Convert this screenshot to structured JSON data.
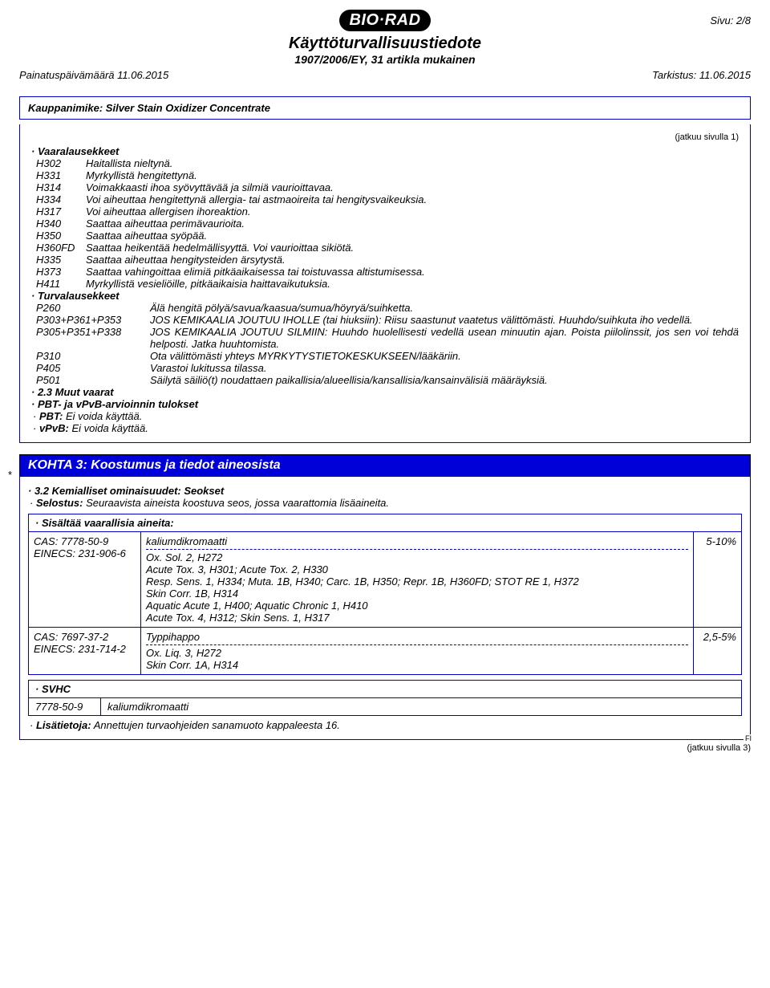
{
  "colors": {
    "brand_bar_bg": "#0000d8",
    "brand_bar_text": "#ffffff",
    "frame_border": "#0000c0",
    "logo_bg": "#000000",
    "logo_text": "#ffffff",
    "page_bg": "#ffffff",
    "text": "#000000"
  },
  "typography": {
    "base_font": "Arial",
    "base_size_pt": 10,
    "title_size_pt": 15,
    "section_size_pt": 12
  },
  "header": {
    "logo_text": "BIO·RAD",
    "page_label": "Sivu: 2/8",
    "title": "Käyttöturvallisuustiedote",
    "subtitle": "1907/2006/EY, 31 artikla mukainen",
    "print_date_label": "Painatuspäivämäärä 11.06.2015",
    "revision_label": "Tarkistus: 11.06.2015",
    "tradename": "Kauppanimike: Silver Stain Oxidizer Concentrate"
  },
  "cont_from": "(jatkuu sivulla 1)",
  "cont_to": "(jatkuu sivulla 3)",
  "fi_mark": "FI",
  "hazard": {
    "heading": "Vaaralausekkeet",
    "rows": [
      {
        "code": "H302",
        "text": "Haitallista nieltynä."
      },
      {
        "code": "H331",
        "text": "Myrkyllistä hengitettynä."
      },
      {
        "code": "H314",
        "text": "Voimakkaasti ihoa syövyttävää ja silmiä vaurioittavaa."
      },
      {
        "code": "H334",
        "text": "Voi aiheuttaa hengitettynä allergia- tai astmaoireita tai hengitysvaikeuksia."
      },
      {
        "code": "H317",
        "text": "Voi aiheuttaa allergisen ihoreaktion."
      },
      {
        "code": "H340",
        "text": "Saattaa aiheuttaa perimävaurioita."
      },
      {
        "code": "H350",
        "text": "Saattaa aiheuttaa syöpää."
      },
      {
        "code": "H360FD",
        "text": "Saattaa heikentää hedelmällisyyttä. Voi vaurioittaa sikiötä."
      },
      {
        "code": "H335",
        "text": "Saattaa aiheuttaa hengitysteiden ärsytystä."
      },
      {
        "code": "H373",
        "text": "Saattaa vahingoittaa elimiä pitkäaikaisessa tai toistuvassa altistumisessa."
      },
      {
        "code": "H411",
        "text": "Myrkyllistä vesieliöille, pitkäaikaisia haittavaikutuksia."
      }
    ]
  },
  "precaution": {
    "heading": "Turvalausekkeet",
    "rows": [
      {
        "code": "P260",
        "text": "Älä hengitä pölyä/savua/kaasua/sumua/höyryä/suihketta."
      },
      {
        "code": "P303+P361+P353",
        "text": "JOS KEMIKAALIA JOUTUU IHOLLE (tai hiuksiin): Riisu saastunut vaatetus välittömästi. Huuhdo/suihkuta iho vedellä."
      },
      {
        "code": "P305+P351+P338",
        "text": "JOS KEMIKAALIA JOUTUU SILMIIN: Huuhdo huolellisesti vedellä usean minuutin ajan. Poista piilolinssit, jos sen voi tehdä helposti. Jatka huuhtomista."
      },
      {
        "code": "P310",
        "text": "Ota välittömästi yhteys MYRKYTYSTIETOKESKUKSEEN/lääkäriin."
      },
      {
        "code": "P405",
        "text": "Varastoi lukitussa tilassa."
      },
      {
        "code": "P501",
        "text": "Säilytä säiliö(t) noudattaen paikallisia/alueellisia/kansallisia/kansainvälisiä määräyksiä."
      }
    ]
  },
  "other_hazards": {
    "heading": "2.3 Muut vaarat",
    "pbt_heading": "PBT- ja vPvB-arvioinnin tulokset",
    "pbt_label": "PBT:",
    "pbt_text": "Ei voida käyttää.",
    "vpvb_label": "vPvB:",
    "vpvb_text": "Ei voida käyttää."
  },
  "section3": {
    "title": "KOHTA 3: Koostumus ja tiedot aineosista",
    "sub_heading": "3.2 Kemialliset ominaisuudet: Seokset",
    "desc_label": "Selostus:",
    "desc_text": "Seuraavista aineista koostuva seos, jossa vaarattomia lisäaineita.",
    "ing_heading": "Sisältää vaarallisia aineita:",
    "ingredients": [
      {
        "cas": "CAS: 7778-50-9",
        "einecs": "EINECS: 231-906-6",
        "name": "kaliumdikromaatti",
        "pct": "5-10%",
        "detail": "Ox. Sol. 2, H272\nAcute Tox. 3, H301; Acute Tox. 2, H330\nResp. Sens. 1, H334; Muta. 1B, H340; Carc. 1B, H350; Repr. 1B, H360FD; STOT RE 1, H372\nSkin Corr. 1B, H314\nAquatic Acute 1, H400; Aquatic Chronic 1, H410\nAcute Tox. 4, H312; Skin Sens. 1, H317"
      },
      {
        "cas": "CAS: 7697-37-2",
        "einecs": "EINECS: 231-714-2",
        "name": "Typpihappo",
        "pct": "2,5-5%",
        "detail": "Ox. Liq. 3, H272\nSkin Corr. 1A, H314"
      }
    ],
    "svhc_heading": "SVHC",
    "svhc_cas": "7778-50-9",
    "svhc_name": "kaliumdikromaatti",
    "addinfo_label": "Lisätietoja:",
    "addinfo_text": "Annettujen turvaohjeiden sanamuoto kappaleesta 16."
  }
}
